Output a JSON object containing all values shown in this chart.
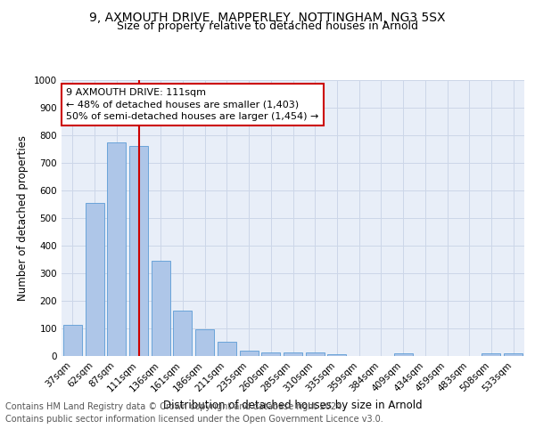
{
  "title_line1": "9, AXMOUTH DRIVE, MAPPERLEY, NOTTINGHAM, NG3 5SX",
  "title_line2": "Size of property relative to detached houses in Arnold",
  "xlabel": "Distribution of detached houses by size in Arnold",
  "ylabel": "Number of detached properties",
  "categories": [
    "37sqm",
    "62sqm",
    "87sqm",
    "111sqm",
    "136sqm",
    "161sqm",
    "186sqm",
    "211sqm",
    "235sqm",
    "260sqm",
    "285sqm",
    "310sqm",
    "335sqm",
    "359sqm",
    "384sqm",
    "409sqm",
    "434sqm",
    "459sqm",
    "483sqm",
    "508sqm",
    "533sqm"
  ],
  "values": [
    113,
    555,
    775,
    762,
    345,
    163,
    97,
    53,
    20,
    12,
    12,
    12,
    8,
    0,
    0,
    10,
    0,
    0,
    0,
    10,
    10
  ],
  "bar_color": "#aec6e8",
  "bar_edge_color": "#5b9bd5",
  "annotation_text_line1": "9 AXMOUTH DRIVE: 111sqm",
  "annotation_text_line2": "← 48% of detached houses are smaller (1,403)",
  "annotation_text_line3": "50% of semi-detached houses are larger (1,454) →",
  "annotation_box_color": "#ffffff",
  "annotation_box_edge_color": "#cc0000",
  "vline_color": "#cc0000",
  "vline_x_index": 3,
  "ylim": [
    0,
    1000
  ],
  "yticks": [
    0,
    100,
    200,
    300,
    400,
    500,
    600,
    700,
    800,
    900,
    1000
  ],
  "grid_color": "#ccd6e8",
  "background_color": "#e8eef8",
  "footer_line1": "Contains HM Land Registry data © Crown copyright and database right 2024.",
  "footer_line2": "Contains public sector information licensed under the Open Government Licence v3.0.",
  "title_fontsize": 10,
  "subtitle_fontsize": 9,
  "axis_label_fontsize": 8.5,
  "tick_fontsize": 7.5,
  "annotation_fontsize": 8,
  "footer_fontsize": 7
}
